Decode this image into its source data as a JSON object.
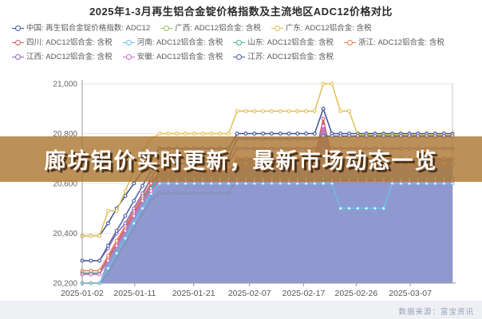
{
  "title": "2025年1-3月再生铝合金锭价格指数及主流地区ADC12价格对比",
  "banner": {
    "text": "廊坊铝价实时更新，最新市场动态一览"
  },
  "source": {
    "label": "数据来源：富宝资讯"
  },
  "colors": {
    "banner_bg": "#ac7834",
    "area_fill": "#8a94cd",
    "axis": "#999999",
    "grid": "#e4e4ea"
  },
  "legend": {
    "items": [
      {
        "label": "中国: 再生铝合金锭价格指数: ADC12",
        "color": "#3a5092"
      },
      {
        "label": "广西: ADC12铝合金: 含税",
        "color": "#97c25d"
      },
      {
        "label": "广东: ADC12铝合金: 含税",
        "color": "#e3bf55"
      },
      {
        "label": "四川: ADC12铝合金: 含税",
        "color": "#d15c5c"
      },
      {
        "label": "河南: ADC12铝合金: 含税",
        "color": "#6bbde8"
      },
      {
        "label": "山东: ADC12铝合金: 含税",
        "color": "#49b184"
      },
      {
        "label": "浙江: ADC12铝合金: 含税",
        "color": "#de8551"
      },
      {
        "label": "江西: ADC12铝合金: 含税",
        "color": "#8f66c4"
      },
      {
        "label": "安徽: ADC12铝合金: 含税",
        "color": "#d36bc6"
      },
      {
        "label": "江苏: ADC12铝合金: 含税",
        "color": "#4a5fa5"
      }
    ]
  },
  "chart_data": {
    "type": "line",
    "title": "2025年1-3月再生铝合金锭价格指数及主流地区ADC12价格对比",
    "xlabel": "",
    "ylabel": "",
    "ylim": [
      20200,
      21000
    ],
    "yticks": [
      21000,
      20800,
      20600,
      20400,
      20200
    ],
    "grid": true,
    "legend_position": "top",
    "xticks": [
      {
        "label": "2025-01-02",
        "pos": 0
      },
      {
        "label": "2025-01-11",
        "pos": 0.142
      },
      {
        "label": "2025-01-21",
        "pos": 0.301
      },
      {
        "label": "2025-02-07",
        "pos": 0.452
      },
      {
        "label": "2025-02-17",
        "pos": 0.598
      },
      {
        "label": "2025-02-26",
        "pos": 0.74
      },
      {
        "label": "2025-03-07",
        "pos": 0.886
      }
    ],
    "x": [
      "2025-01-02",
      "2025-01-03",
      "2025-01-06",
      "2025-01-07",
      "2025-01-08",
      "2025-01-09",
      "2025-01-10",
      "2025-01-13",
      "2025-01-14",
      "2025-01-15",
      "2025-01-16",
      "2025-01-17",
      "2025-01-20",
      "2025-01-21",
      "2025-01-22",
      "2025-01-23",
      "2025-01-24",
      "2025-01-26",
      "2025-02-05",
      "2025-02-06",
      "2025-02-07",
      "2025-02-10",
      "2025-02-11",
      "2025-02-12",
      "2025-02-13",
      "2025-02-14",
      "2025-02-17",
      "2025-02-18",
      "2025-02-19",
      "2025-02-20",
      "2025-02-21",
      "2025-02-24",
      "2025-02-25",
      "2025-02-26",
      "2025-02-27",
      "2025-02-28",
      "2025-03-03",
      "2025-03-04",
      "2025-03-05",
      "2025-03-06",
      "2025-03-07",
      "2025-03-10",
      "2025-03-11",
      "2025-03-12"
    ],
    "series": [
      {
        "name": "中国: 再生铝合金锭价格指数: ADC12",
        "color": "#3a5092",
        "values": [
          20390,
          20390,
          20390,
          20440,
          20500,
          20550,
          20600,
          20650,
          20700,
          20740,
          20740,
          20740,
          20740,
          20740,
          20740,
          20740,
          20740,
          20740,
          20800,
          20800,
          20800,
          20800,
          20800,
          20800,
          20800,
          20800,
          20800,
          20800,
          20900,
          20800,
          20800,
          20800,
          20800,
          20800,
          20800,
          20800,
          20800,
          20800,
          20800,
          20800,
          20800,
          20800,
          20800,
          20800
        ]
      },
      {
        "name": "广西: ADC12铝合金: 含税",
        "color": "#97c25d",
        "values": [
          20200,
          20200,
          20200,
          20240,
          20300,
          20360,
          20420,
          20480,
          20530,
          20560,
          20560,
          20560,
          20560,
          20560,
          20560,
          20560,
          20560,
          20560,
          20620,
          20620,
          20620,
          20620,
          20620,
          20620,
          20620,
          20620,
          20620,
          20620,
          20620,
          20620,
          20620,
          20620,
          20620,
          20620,
          20620,
          20620,
          20620,
          20620,
          20620,
          20620,
          20620,
          20620,
          20620,
          20620
        ]
      },
      {
        "name": "广东: ADC12铝合金: 含税",
        "color": "#e3bf55",
        "values": [
          20390,
          20390,
          20390,
          20490,
          20490,
          20570,
          20650,
          20730,
          20780,
          20800,
          20800,
          20800,
          20800,
          20800,
          20800,
          20800,
          20800,
          20800,
          20890,
          20890,
          20890,
          20890,
          20890,
          20890,
          20890,
          20890,
          20890,
          20890,
          21000,
          21000,
          20890,
          20890,
          20795,
          20795,
          20795,
          20795,
          20795,
          20795,
          20795,
          20795,
          20795,
          20795,
          20795,
          20795
        ]
      },
      {
        "name": "四川: ADC12铝合金: 含税",
        "color": "#d15c5c",
        "area": "rgba(124,135,199,0.85)",
        "area_from": 2,
        "values": [
          20240,
          20240,
          20240,
          20300,
          20360,
          20420,
          20480,
          20540,
          20600,
          20650,
          20650,
          20650,
          20650,
          20650,
          20650,
          20650,
          20650,
          20650,
          20700,
          20700,
          20700,
          20700,
          20700,
          20700,
          20700,
          20700,
          20700,
          20700,
          20860,
          20700,
          20700,
          20700,
          20700,
          20700,
          20700,
          20700,
          20700,
          20700,
          20700,
          20700,
          20700,
          20700,
          20700,
          20700
        ]
      },
      {
        "name": "河南: ADC12铝合金: 含税",
        "color": "#6bbde8",
        "values": [
          20200,
          20200,
          20200,
          20260,
          20320,
          20380,
          20440,
          20500,
          20560,
          20600,
          20600,
          20600,
          20600,
          20600,
          20600,
          20600,
          20600,
          20600,
          20600,
          20600,
          20600,
          20600,
          20600,
          20600,
          20600,
          20600,
          20600,
          20600,
          20600,
          20600,
          20500,
          20500,
          20500,
          20500,
          20500,
          20500,
          20600,
          20600,
          20600,
          20600,
          20600,
          20600,
          20600,
          20600
        ]
      },
      {
        "name": "山东: ADC12铝合金: 含税",
        "color": "#49b184",
        "values": [
          20240,
          20240,
          20240,
          20290,
          20350,
          20410,
          20470,
          20530,
          20580,
          20620,
          20620,
          20620,
          20620,
          20620,
          20620,
          20620,
          20620,
          20620,
          20620,
          20620,
          20620,
          20620,
          20620,
          20620,
          20620,
          20620,
          20620,
          20620,
          20620,
          20620,
          20620,
          20620,
          20620,
          20620,
          20620,
          20620,
          20620,
          20620,
          20620,
          20620,
          20620,
          20620,
          20620,
          20620
        ]
      },
      {
        "name": "浙江: ADC12铝合金: 含税",
        "color": "#de8551",
        "values": [
          20250,
          20250,
          20250,
          20310,
          20370,
          20430,
          20490,
          20550,
          20620,
          20680,
          20680,
          20680,
          20680,
          20680,
          20680,
          20680,
          20680,
          20680,
          20680,
          20680,
          20680,
          20680,
          20680,
          20680,
          20680,
          20680,
          20680,
          20680,
          20680,
          20680,
          20680,
          20680,
          20680,
          20680,
          20680,
          20680,
          20680,
          20680,
          20680,
          20680,
          20680,
          20680,
          20680,
          20680
        ]
      },
      {
        "name": "江西: ADC12铝合金: 含税",
        "color": "#8f66c4",
        "values": [
          20290,
          20290,
          20290,
          20340,
          20400,
          20440,
          20500,
          20560,
          20620,
          20680,
          20680,
          20680,
          20680,
          20680,
          20680,
          20680,
          20680,
          20680,
          20740,
          20740,
          20740,
          20740,
          20740,
          20740,
          20740,
          20740,
          20740,
          20740,
          20740,
          20740,
          20740,
          20740,
          20740,
          20740,
          20740,
          20740,
          20740,
          20740,
          20740,
          20740,
          20740,
          20740,
          20740,
          20740
        ]
      },
      {
        "name": "安徽: ADC12铝合金: 含税",
        "color": "#d36bc6",
        "values": [
          20235,
          20235,
          20235,
          20290,
          20350,
          20410,
          20470,
          20530,
          20570,
          20610,
          20610,
          20610,
          20610,
          20610,
          20610,
          20610,
          20610,
          20610,
          20610,
          20610,
          20610,
          20610,
          20610,
          20610,
          20610,
          20610,
          20610,
          20610,
          20830,
          20610,
          20610,
          20610,
          20610,
          20610,
          20610,
          20610,
          20610,
          20610,
          20610,
          20610,
          20610,
          20610,
          20610,
          20610
        ]
      },
      {
        "name": "江苏: ADC12铝合金: 含税",
        "color": "#4a5fa5",
        "values": [
          20290,
          20290,
          20290,
          20350,
          20410,
          20470,
          20530,
          20590,
          20650,
          20700,
          20700,
          20700,
          20700,
          20700,
          20700,
          20700,
          20700,
          20700,
          20780,
          20780,
          20780,
          20780,
          20780,
          20780,
          20780,
          20780,
          20780,
          20780,
          20790,
          20790,
          20790,
          20790,
          20790,
          20790,
          20790,
          20790,
          20790,
          20790,
          20790,
          20790,
          20790,
          20790,
          20790,
          20790
        ]
      }
    ]
  }
}
